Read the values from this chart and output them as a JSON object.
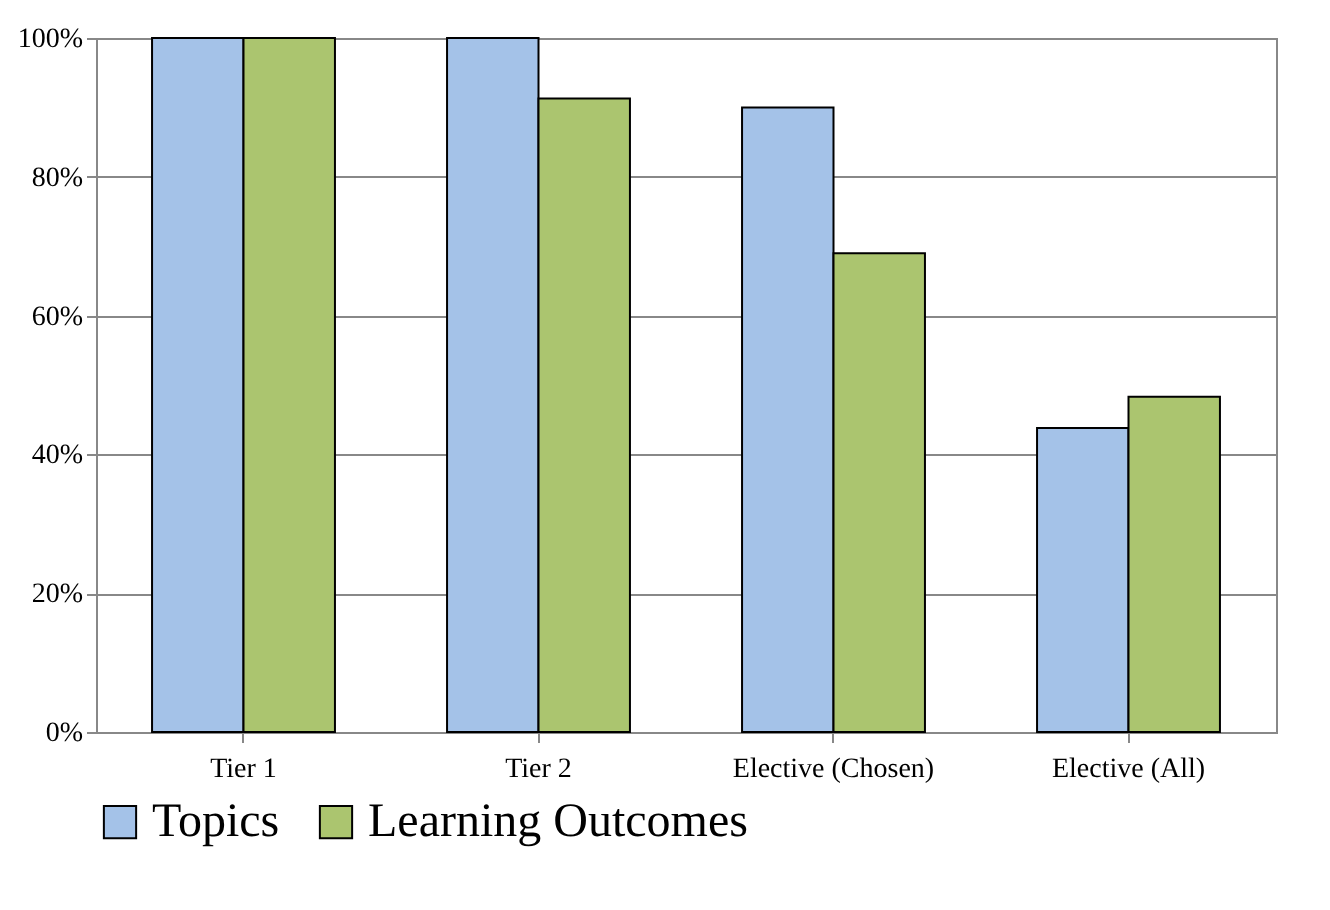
{
  "chart_data": {
    "type": "bar",
    "categories": [
      "Tier 1",
      "Tier 2",
      "Elective (Chosen)",
      "Elective (All)"
    ],
    "series": [
      {
        "name": "Topics",
        "color": "#a4c2e8",
        "values": [
          100,
          100,
          90,
          43.8
        ]
      },
      {
        "name": "Learning Outcomes",
        "color": "#abc56f",
        "values": [
          100,
          91.3,
          69,
          48.3
        ]
      }
    ],
    "ylim": [
      0,
      100
    ],
    "yticks": [
      {
        "value": 0,
        "label": "0%"
      },
      {
        "value": 20,
        "label": "20%"
      },
      {
        "value": 40,
        "label": "40%"
      },
      {
        "value": 60,
        "label": "60%"
      },
      {
        "value": 80,
        "label": "80%"
      },
      {
        "value": 100,
        "label": "100%"
      }
    ],
    "grid": "y",
    "legend": "bottom"
  }
}
